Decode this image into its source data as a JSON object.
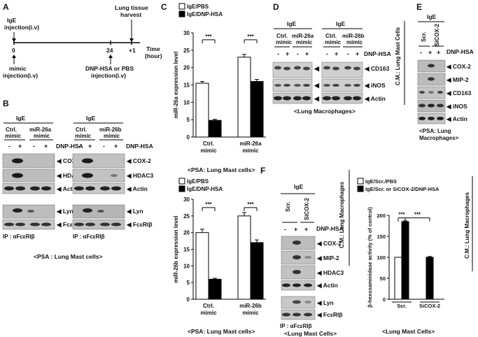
{
  "panels": {
    "A": {
      "letter": "A",
      "ige_injection": [
        "IgE",
        "injection(i.v)"
      ],
      "harvest": [
        "Lung tissue",
        "harvest"
      ],
      "ticks": [
        "0",
        "24",
        "+1"
      ],
      "time_label": [
        "Time",
        "(hour)"
      ],
      "mimic_injection": [
        "mimic",
        "injection(i.v)"
      ],
      "dnp_injection": [
        "DNP-HSA or PBS",
        "injection(i.v)"
      ]
    },
    "B": {
      "letter": "B",
      "left": {
        "ige": "IgE",
        "mimic1": [
          "Ctrl.",
          "mimic"
        ],
        "mimic2": [
          "miR-26a",
          "mimic"
        ]
      },
      "right": {
        "ige": "IgE",
        "mimic1": [
          "Ctrl.",
          "mimic"
        ],
        "mimic2": [
          "miR-26b",
          "mimic"
        ]
      },
      "signs": [
        "-",
        "+",
        "-",
        "+"
      ],
      "dnp": "DNP-HSA",
      "bands_top": [
        "COX-2",
        "HDAC3",
        "Actin"
      ],
      "bands_bottom": [
        "Lyn",
        "FcεRIβ"
      ],
      "ip": "IP : αFcεRIβ",
      "caption": "<PSA : Lung Mast cells>"
    },
    "C": {
      "letter": "C",
      "caption_top": "<PSA: Lung Mast cells>",
      "caption_bottom": "<PSA: Lung Mast cells>",
      "significance": "***"
    },
    "D": {
      "letter": "D",
      "left": {
        "ige": "IgE",
        "mimic1": [
          "Ctrl.",
          "mimic"
        ],
        "mimic2": [
          "miR-26a",
          "mimic"
        ]
      },
      "right": {
        "ige": "IgE",
        "mimic1": [
          "Ctrl.",
          "mimic"
        ],
        "mimic2": [
          "miR-26b",
          "mimic"
        ]
      },
      "signs": [
        "-",
        "+",
        "-",
        "+"
      ],
      "dnp": "DNP-HSA",
      "bands": [
        "CD163",
        "iNOS",
        "Actin"
      ],
      "side_label": "C.M.: Lung Mast Cells",
      "caption": "<Lung Macrophages>"
    },
    "E": {
      "letter": "E",
      "ige": "IgE",
      "cols": [
        "Scr.",
        "SiCOX-2"
      ],
      "signs": [
        "-",
        "+",
        "+"
      ],
      "dnp": "DNP-HSA",
      "bands": [
        "COX-2",
        "MIP-2",
        "CD163",
        "iNOS",
        "Actin"
      ],
      "caption": [
        "<PSA: Lung",
        "Macrophages>"
      ]
    },
    "F": {
      "letter": "F",
      "ige": "IgE",
      "cols": [
        "Scr.",
        "SiCOX-2"
      ],
      "signs": [
        "-",
        "+",
        "+"
      ],
      "dnp": "DNP-HSA",
      "bands_top": [
        "COX-2",
        "MIP-2",
        "HDAC3",
        "Actin"
      ],
      "bands_bottom": [
        "Lyn",
        "FcεRIβ"
      ],
      "ip": "IP : αFcεRIβ",
      "side_label_blot": "C.M.: Lung Macrophages",
      "side_label_chart": "C.M.: Lung Macrophages",
      "caption_blot": "<Lung Mast Cells>",
      "caption_chart": "<Lung Mast Cells>",
      "significance": "***"
    }
  },
  "chart_data": [
    {
      "id": "C-top",
      "type": "bar",
      "categories": [
        "Ctrl. mimic",
        "miR-26a mimic"
      ],
      "category_lines": [
        [
          "Ctrl.",
          "mimic"
        ],
        [
          "miR-26a",
          "mimic"
        ]
      ],
      "series": [
        {
          "name": "IgE/PBS",
          "values": [
            15.5,
            23.0
          ],
          "errors": [
            0.5,
            0.8
          ],
          "color": "#ffffff"
        },
        {
          "name": "IgE/DNP-HSA",
          "values": [
            4.8,
            16.0
          ],
          "errors": [
            0.3,
            0.6
          ],
          "color": "#000000"
        }
      ],
      "ylabel": "miR-26a  expression level",
      "ylim": [
        0,
        30
      ],
      "yticks": [
        "0",
        "5",
        "10",
        "15",
        "20",
        "25",
        "30"
      ],
      "legend": "top-left"
    },
    {
      "id": "C-bottom",
      "type": "bar",
      "categories": [
        "Ctrl. mimic",
        "miR-26b mimic"
      ],
      "category_lines": [
        [
          "Ctrl.",
          "mimic"
        ],
        [
          "miR-26b",
          "mimic"
        ]
      ],
      "series": [
        {
          "name": "IgE/PBS",
          "values": [
            20.0,
            25.0
          ],
          "errors": [
            1.0,
            1.0
          ],
          "color": "#ffffff"
        },
        {
          "name": "IgE/DNP-HSA",
          "values": [
            6.0,
            17.0
          ],
          "errors": [
            0.3,
            0.8
          ],
          "color": "#000000"
        }
      ],
      "ylabel": "miR-26b  expression level",
      "ylim": [
        0,
        30
      ],
      "yticks": [
        "0",
        "5",
        "10",
        "15",
        "20",
        "25",
        "30"
      ],
      "legend": "top-left"
    },
    {
      "id": "F-chart",
      "type": "bar",
      "categories": [
        "Scr.",
        "SiCOX-2"
      ],
      "category_lines": [
        [
          "Scr."
        ],
        [
          "SiCOX-2"
        ]
      ],
      "series": [
        {
          "name": "IgE/Scr./PBS",
          "values": [
            100,
            null
          ],
          "errors": [
            0,
            null
          ],
          "color": "#ffffff"
        },
        {
          "name": "IgE/Scr. or SiCOX-2/DNP-HSA",
          "values": [
            185,
            100
          ],
          "errors": [
            2,
            2
          ],
          "color": "#000000"
        }
      ],
      "ylabel": "β-hexosaminidase  activity (% of control)",
      "ylim": [
        0,
        200
      ],
      "yticks": [
        "0",
        "50",
        "100",
        "150",
        "200"
      ],
      "legend": "top"
    }
  ]
}
